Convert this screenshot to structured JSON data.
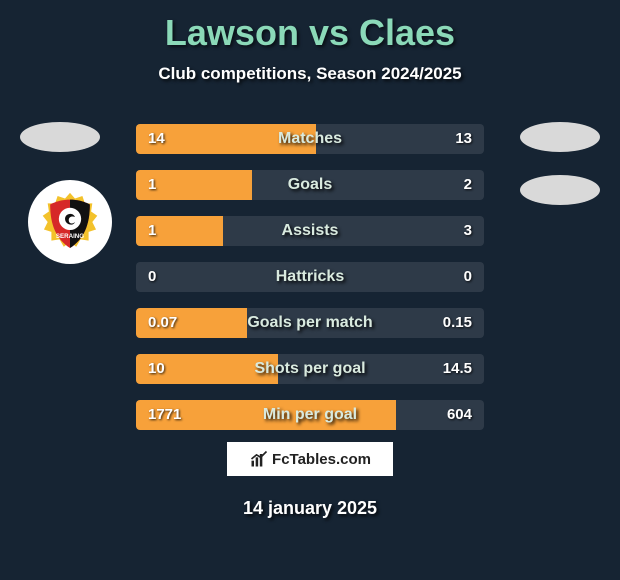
{
  "title": "Lawson vs Claes",
  "subtitle": "Club competitions, Season 2024/2025",
  "date_text": "14 january 2025",
  "brand_text": "FcTables.com",
  "colors": {
    "bg": "#162433",
    "title": "#8bd9b8",
    "bar_bg": "#2e3a48",
    "left_fill": "#f7a13a",
    "right_fill": "#3b4a5a"
  },
  "bars": [
    {
      "label": "Matches",
      "left": "14",
      "right": "13",
      "left_pct": 51.8,
      "right_pct": 48.2,
      "right_fill_visible": false
    },
    {
      "label": "Goals",
      "left": "1",
      "right": "2",
      "left_pct": 33.3,
      "right_pct": 66.7,
      "right_fill_visible": false
    },
    {
      "label": "Assists",
      "left": "1",
      "right": "3",
      "left_pct": 25.0,
      "right_pct": 75.0,
      "right_fill_visible": false
    },
    {
      "label": "Hattricks",
      "left": "0",
      "right": "0",
      "left_pct": 0,
      "right_pct": 0,
      "right_fill_visible": false
    },
    {
      "label": "Goals per match",
      "left": "0.07",
      "right": "0.15",
      "left_pct": 31.8,
      "right_pct": 68.2,
      "right_fill_visible": false
    },
    {
      "label": "Shots per goal",
      "left": "10",
      "right": "14.5",
      "left_pct": 40.8,
      "right_pct": 59.2,
      "right_fill_visible": false
    },
    {
      "label": "Min per goal",
      "left": "1771",
      "right": "604",
      "left_pct": 74.6,
      "right_pct": 25.4,
      "right_fill_visible": false
    }
  ]
}
